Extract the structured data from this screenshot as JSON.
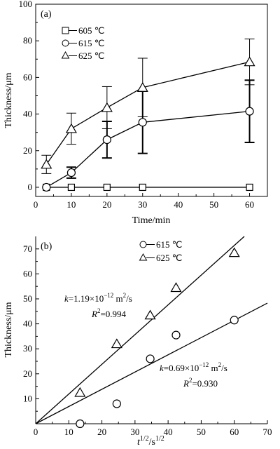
{
  "chart_data": [
    {
      "type": "line",
      "panel_label": "(a)",
      "xlabel": "Time/min",
      "ylabel": "Thickness/μm",
      "xlim": [
        0,
        65
      ],
      "ylim": [
        -5,
        100
      ],
      "xticks": [
        "0",
        "10",
        "20",
        "30",
        "40",
        "50",
        "60"
      ],
      "yticks": [
        "0",
        "20",
        "40",
        "60",
        "80",
        "100"
      ],
      "legend_placement": "top-left",
      "series": [
        {
          "name": "605 ℃",
          "marker": "square",
          "x": [
            3,
            10,
            20,
            30,
            60
          ],
          "y": [
            0,
            0,
            0,
            0,
            0
          ],
          "err": [
            0,
            0,
            0,
            0,
            0
          ]
        },
        {
          "name": "615 ℃",
          "marker": "circle",
          "x": [
            3,
            10,
            20,
            30,
            60
          ],
          "y": [
            0,
            8,
            26,
            35.5,
            41.5
          ],
          "err": [
            0,
            3,
            10,
            17,
            17
          ]
        },
        {
          "name": "625 ℃",
          "marker": "triangle",
          "x": [
            3,
            10,
            20,
            30,
            60
          ],
          "y": [
            12.5,
            32,
            43.5,
            54.5,
            68.5
          ],
          "err": [
            5,
            8.5,
            11.5,
            16,
            12.5
          ]
        }
      ]
    },
    {
      "type": "scatter",
      "panel_label": "(b)",
      "xlabel": "t",
      "xlabel_sup1": "1/2",
      "xlabel_mid": "/s",
      "xlabel_sup2": "1/2",
      "ylabel": "Thickness/μm",
      "xlim": [
        0,
        70
      ],
      "ylim": [
        0,
        75
      ],
      "xticks": [
        "0",
        "10",
        "20",
        "30",
        "40",
        "50",
        "60",
        "70"
      ],
      "yticks": [
        "0",
        "10",
        "20",
        "30",
        "40",
        "50",
        "60",
        "70"
      ],
      "legend_placement": "top-center",
      "series": [
        {
          "name": "615 ℃",
          "marker": "circle",
          "x": [
            13.4,
            24.5,
            34.6,
            42.4,
            60
          ],
          "y": [
            0,
            8,
            26,
            35.5,
            41.5
          ],
          "fit_slope": 0.69
        },
        {
          "name": "625 ℃",
          "marker": "triangle",
          "x": [
            13.4,
            24.5,
            34.6,
            42.4,
            60
          ],
          "y": [
            12.5,
            32,
            43.5,
            54.5,
            68.5
          ],
          "fit_slope": 1.19
        }
      ],
      "annotations": [
        {
          "k_prefix": "k",
          "k_value": "=1.19×10",
          "k_exp": "−12",
          "k_unit": " m",
          "k_unit_exp": "2",
          "k_tail": "/s",
          "r_prefix": "R",
          "r_exp": "2",
          "r_value": "=0.994"
        },
        {
          "k_prefix": "k",
          "k_value": "=0.69×10",
          "k_exp": "−12",
          "k_unit": " m",
          "k_unit_exp": "2",
          "k_tail": "/s",
          "r_prefix": "R",
          "r_exp": "2",
          "r_value": "=0.930"
        }
      ]
    }
  ]
}
